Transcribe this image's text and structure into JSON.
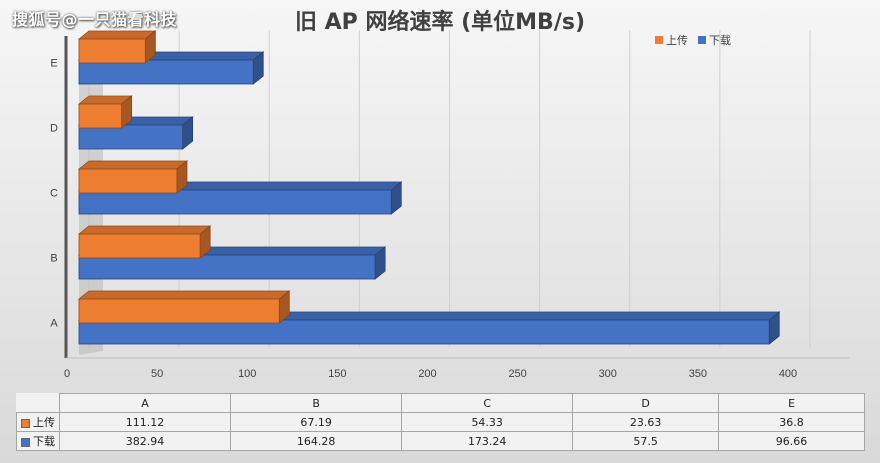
{
  "watermark": "搜狐号@一只猫看科技",
  "chart_data": {
    "type": "bar",
    "orientation": "horizontal",
    "title": "旧 AP 网络速率 (单位MB/s)",
    "categories": [
      "A",
      "B",
      "C",
      "D",
      "E"
    ],
    "series": [
      {
        "name": "上传",
        "values": [
          111.12,
          67.19,
          54.33,
          23.63,
          36.8
        ],
        "color": "#ed7d31"
      },
      {
        "name": "下载",
        "values": [
          382.94,
          164.28,
          173.24,
          57.5,
          96.66
        ],
        "color": "#4472c4"
      }
    ],
    "xlim": [
      0,
      400
    ],
    "xticks": [
      0,
      50,
      100,
      150,
      200,
      250,
      300,
      350,
      400
    ],
    "xlabel": "",
    "ylabel": "",
    "grid": true,
    "legend_position": "top-right",
    "data_table": {
      "rows": [
        {
          "label": "上传",
          "values": [
            "111.12",
            "67.19",
            "54.33",
            "23.63",
            "36.8"
          ]
        },
        {
          "label": "下载",
          "values": [
            "382.94",
            "164.28",
            "173.24",
            "57.5",
            "96.66"
          ]
        }
      ]
    }
  }
}
